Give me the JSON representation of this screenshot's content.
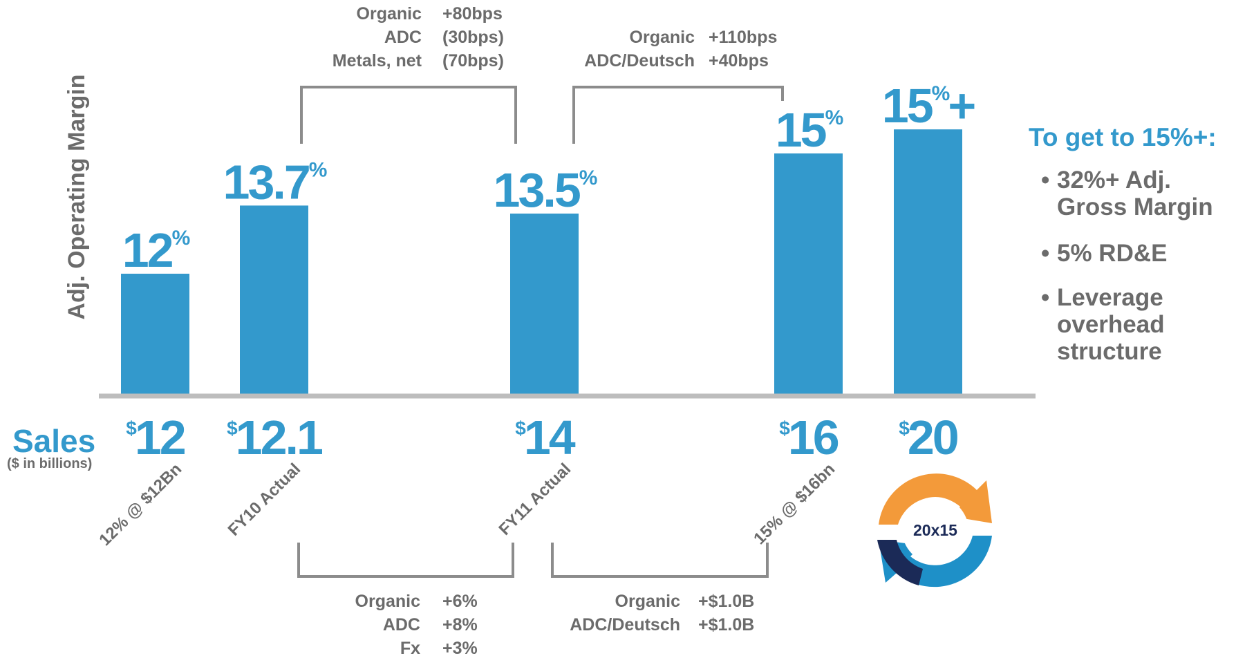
{
  "colors": {
    "bar": "#3399CC",
    "accent_text": "#3399CC",
    "gray_text": "#6B6B6B",
    "bracket": "#8C8C8C",
    "axis": "#BDBDBD",
    "logo_orange": "#F39A3A",
    "logo_navy": "#1B2A57",
    "logo_blue": "#1E90C8"
  },
  "chart_data": {
    "type": "bar",
    "ylabel": "Adj. Operating Margin",
    "sales_label": "Sales",
    "sales_unit": "($ in billions)",
    "bars": [
      {
        "margin_value": 12,
        "margin_big": "12",
        "margin_suffix": "%",
        "sales": 12,
        "sales_prefix": "$",
        "sales_text": "12",
        "category": "12% @ $12Bn"
      },
      {
        "margin_value": 13.7,
        "margin_big": "13.7",
        "margin_suffix": "%",
        "sales": 12.1,
        "sales_prefix": "$",
        "sales_text": "12.1",
        "category": "FY10 Actual"
      },
      {
        "margin_value": 13.5,
        "margin_big": "13.5",
        "margin_suffix": "%",
        "sales": 14,
        "sales_prefix": "$",
        "sales_text": "14",
        "category": "FY11 Actual"
      },
      {
        "margin_value": 15,
        "margin_big": "15",
        "margin_suffix": "%",
        "sales": 16,
        "sales_prefix": "$",
        "sales_text": "16",
        "category": "15% @ $16bn"
      },
      {
        "margin_value": 15.6,
        "margin_big": "15",
        "margin_suffix": "%+",
        "sales": 20,
        "sales_prefix": "$",
        "sales_text": "20",
        "category": ""
      }
    ],
    "bridges_top": [
      {
        "rows": [
          {
            "label": "Organic",
            "value": "+80bps"
          },
          {
            "label": "ADC",
            "value": "(30bps)"
          },
          {
            "label": "Metals, net",
            "value": "(70bps)"
          }
        ]
      },
      {
        "rows": [
          {
            "label": "Organic",
            "value": "+110bps"
          },
          {
            "label": "ADC/Deutsch",
            "value": "+40bps"
          }
        ]
      }
    ],
    "bridges_bottom": [
      {
        "rows": [
          {
            "label": "Organic",
            "value": "+6%"
          },
          {
            "label": "ADC",
            "value": "+8%"
          },
          {
            "label": "Fx",
            "value": "+3%"
          }
        ]
      },
      {
        "rows": [
          {
            "label": "Organic",
            "value": "+$1.0B"
          },
          {
            "label": "ADC/Deutsch",
            "value": "+$1.0B"
          }
        ]
      }
    ]
  },
  "sidebar": {
    "title": "To get to 15%+:",
    "bullets": [
      {
        "lines": [
          "32%+ Adj.",
          "Gross Margin"
        ]
      },
      {
        "lines": [
          "5% RD&E"
        ]
      },
      {
        "lines": [
          "Leverage",
          "overhead",
          "structure"
        ]
      }
    ]
  },
  "logo": {
    "text": "20x15"
  }
}
